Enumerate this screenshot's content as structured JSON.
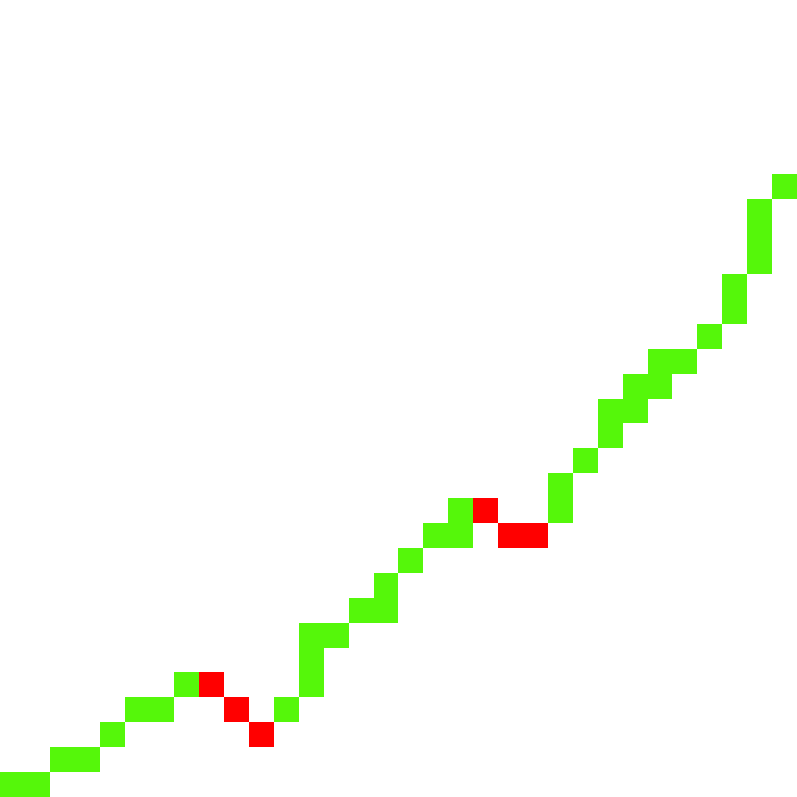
{
  "board": {
    "cols": 32,
    "rows": 32,
    "background": "#ffffff",
    "colors": {
      "up": "#55f70a",
      "down": "#ff0000"
    },
    "cells": [
      {
        "col": 0,
        "row": 31,
        "kind": "up"
      },
      {
        "col": 1,
        "row": 31,
        "kind": "up"
      },
      {
        "col": 2,
        "row": 30,
        "kind": "up"
      },
      {
        "col": 3,
        "row": 30,
        "kind": "up"
      },
      {
        "col": 4,
        "row": 29,
        "kind": "up"
      },
      {
        "col": 5,
        "row": 28,
        "kind": "up"
      },
      {
        "col": 6,
        "row": 28,
        "kind": "up"
      },
      {
        "col": 7,
        "row": 27,
        "kind": "up"
      },
      {
        "col": 8,
        "row": 27,
        "kind": "down"
      },
      {
        "col": 9,
        "row": 28,
        "kind": "down"
      },
      {
        "col": 10,
        "row": 29,
        "kind": "down"
      },
      {
        "col": 11,
        "row": 28,
        "kind": "up"
      },
      {
        "col": 12,
        "row": 27,
        "kind": "up"
      },
      {
        "col": 12,
        "row": 26,
        "kind": "up"
      },
      {
        "col": 12,
        "row": 25,
        "kind": "up"
      },
      {
        "col": 13,
        "row": 25,
        "kind": "up"
      },
      {
        "col": 14,
        "row": 24,
        "kind": "up"
      },
      {
        "col": 15,
        "row": 24,
        "kind": "up"
      },
      {
        "col": 15,
        "row": 23,
        "kind": "up"
      },
      {
        "col": 16,
        "row": 22,
        "kind": "up"
      },
      {
        "col": 17,
        "row": 21,
        "kind": "up"
      },
      {
        "col": 18,
        "row": 21,
        "kind": "up"
      },
      {
        "col": 18,
        "row": 20,
        "kind": "up"
      },
      {
        "col": 19,
        "row": 20,
        "kind": "down"
      },
      {
        "col": 20,
        "row": 21,
        "kind": "down"
      },
      {
        "col": 21,
        "row": 21,
        "kind": "down"
      },
      {
        "col": 22,
        "row": 20,
        "kind": "up"
      },
      {
        "col": 22,
        "row": 19,
        "kind": "up"
      },
      {
        "col": 23,
        "row": 18,
        "kind": "up"
      },
      {
        "col": 24,
        "row": 17,
        "kind": "up"
      },
      {
        "col": 24,
        "row": 16,
        "kind": "up"
      },
      {
        "col": 25,
        "row": 16,
        "kind": "up"
      },
      {
        "col": 25,
        "row": 15,
        "kind": "up"
      },
      {
        "col": 26,
        "row": 15,
        "kind": "up"
      },
      {
        "col": 26,
        "row": 14,
        "kind": "up"
      },
      {
        "col": 27,
        "row": 14,
        "kind": "up"
      },
      {
        "col": 28,
        "row": 13,
        "kind": "up"
      },
      {
        "col": 29,
        "row": 12,
        "kind": "up"
      },
      {
        "col": 29,
        "row": 11,
        "kind": "up"
      },
      {
        "col": 30,
        "row": 10,
        "kind": "up"
      },
      {
        "col": 30,
        "row": 9,
        "kind": "up"
      },
      {
        "col": 30,
        "row": 8,
        "kind": "up"
      },
      {
        "col": 31,
        "row": 7,
        "kind": "up"
      }
    ]
  }
}
